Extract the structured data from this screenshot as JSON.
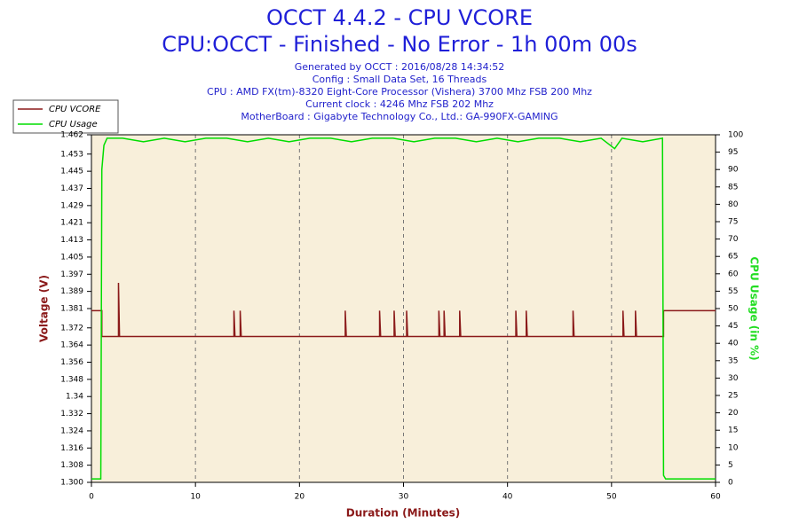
{
  "chart_data": {
    "type": "line",
    "title": "OCCT 4.4.2 - CPU VCORE",
    "subtitle": "CPU:OCCT - Finished - No Error - 1h 00m 00s",
    "info": [
      "Generated by OCCT : 2016/08/28 14:34:52",
      "Config : Small Data Set, 16 Threads",
      "CPU : AMD FX(tm)-8320 Eight-Core Processor (Vishera) 3700 Mhz FSB 200 Mhz",
      "Current clock : 4246 Mhz FSB 202 Mhz",
      "MotherBoard : Gigabyte Technology Co., Ltd.: GA-990FX-GAMING"
    ],
    "xlabel": "Duration (Minutes)",
    "ylabel": "Voltage (V)",
    "y2label": "CPU Usage (in %)",
    "xlim": [
      0,
      60
    ],
    "xticks": [
      0,
      10,
      20,
      30,
      40,
      50,
      60
    ],
    "ylim": [
      1.3,
      1.462
    ],
    "yticks": [
      {
        "value": 1.3,
        "label": "1.300"
      },
      1.308,
      1.316,
      1.324,
      1.332,
      1.34,
      1.348,
      1.356,
      1.364,
      1.372,
      1.381,
      1.389,
      1.397,
      1.405,
      1.413,
      1.421,
      1.429,
      1.437,
      1.445,
      1.453,
      1.462
    ],
    "y2lim": [
      0,
      100
    ],
    "y2ticks": [
      0,
      5,
      10,
      15,
      20,
      25,
      30,
      35,
      40,
      45,
      50,
      55,
      60,
      65,
      70,
      75,
      80,
      85,
      90,
      95,
      100
    ],
    "grid": true,
    "legend": "top-left",
    "series": [
      {
        "name": "CPU VCORE",
        "color": "#8b1a1a",
        "x": [
          0,
          1.0,
          1.0,
          2.6,
          2.6,
          2.7,
          13.7,
          13.7,
          13.8,
          14.3,
          14.3,
          14.4,
          24.4,
          24.4,
          24.5,
          27.7,
          27.7,
          27.8,
          29.1,
          29.1,
          29.2,
          30.3,
          30.3,
          30.4,
          33.4,
          33.4,
          33.5,
          33.9,
          33.9,
          34.0,
          35.4,
          35.4,
          35.5,
          40.8,
          40.8,
          40.9,
          41.8,
          41.8,
          41.9,
          46.3,
          46.3,
          46.4,
          51.1,
          51.1,
          51.2,
          52.3,
          52.3,
          52.4,
          55.0,
          55.0,
          60
        ],
        "values": [
          1.38,
          1.38,
          1.368,
          1.368,
          1.393,
          1.368,
          1.368,
          1.38,
          1.368,
          1.368,
          1.38,
          1.368,
          1.368,
          1.38,
          1.368,
          1.368,
          1.38,
          1.368,
          1.368,
          1.38,
          1.368,
          1.368,
          1.38,
          1.368,
          1.368,
          1.38,
          1.368,
          1.368,
          1.38,
          1.368,
          1.368,
          1.38,
          1.368,
          1.368,
          1.38,
          1.368,
          1.368,
          1.38,
          1.368,
          1.368,
          1.38,
          1.368,
          1.368,
          1.38,
          1.368,
          1.368,
          1.38,
          1.368,
          1.368,
          1.38,
          1.38
        ]
      },
      {
        "name": "CPU Usage",
        "color": "#00dd00",
        "axis": "y2",
        "x": [
          0,
          0.9,
          1.0,
          1.2,
          1.5,
          3,
          5,
          7,
          9,
          11,
          13,
          15,
          17,
          19,
          21,
          23,
          25,
          27,
          29,
          31,
          33,
          35,
          37,
          39,
          41,
          43,
          45,
          47,
          49,
          50.3,
          51,
          53,
          54.9,
          55.0,
          55.2,
          57,
          59,
          60
        ],
        "values": [
          1,
          1,
          90,
          97,
          99,
          99,
          98,
          99,
          98,
          99,
          99,
          98,
          99,
          98,
          99,
          99,
          98,
          99,
          99,
          98,
          99,
          99,
          98,
          99,
          98,
          99,
          99,
          98,
          99,
          96,
          99,
          98,
          99,
          2,
          1,
          1,
          1,
          1
        ]
      }
    ]
  }
}
